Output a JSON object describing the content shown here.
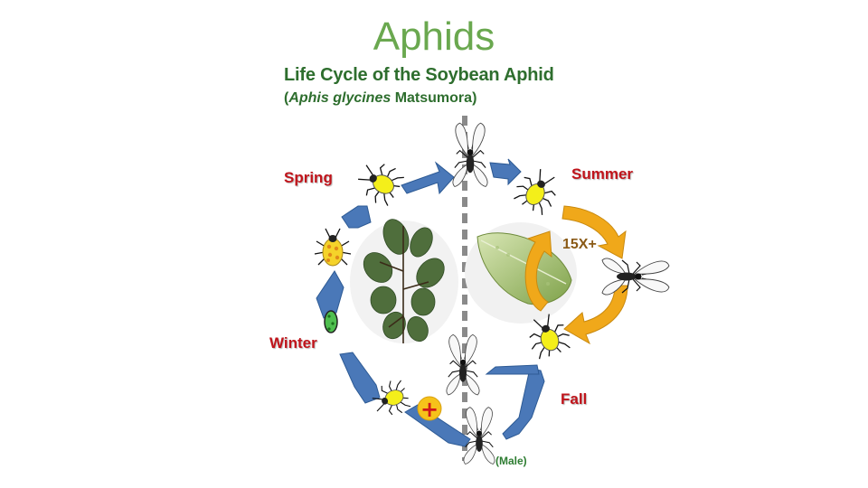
{
  "slide": {
    "title": "Aphids"
  },
  "diagram": {
    "title": "Life Cycle of the Soybean Aphid",
    "scientific_genus_species": "Aphis glycines",
    "scientific_authority": "Matsumora",
    "seasons": {
      "spring": "Spring",
      "summer": "Summer",
      "fall": "Fall",
      "winter": "Winter"
    },
    "multiplier": "15X+",
    "male_label": "(Male)",
    "plus_symbol": "+"
  },
  "colors": {
    "title_green": "#6aa84f",
    "subtitle_green": "#2e6e2e",
    "season_red": "#c0141b",
    "arrow_blue": "#4a78b8",
    "arrow_orange": "#f0a81a",
    "aphid_yellow": "#f4ef1a",
    "egg_green": "#4fbf4f"
  },
  "icons": [
    "winged-aphid-icon",
    "wingless-aphid-icon",
    "egg-icon",
    "buckthorn-plant-icon",
    "soybean-leaf-icon",
    "plus-icon"
  ]
}
